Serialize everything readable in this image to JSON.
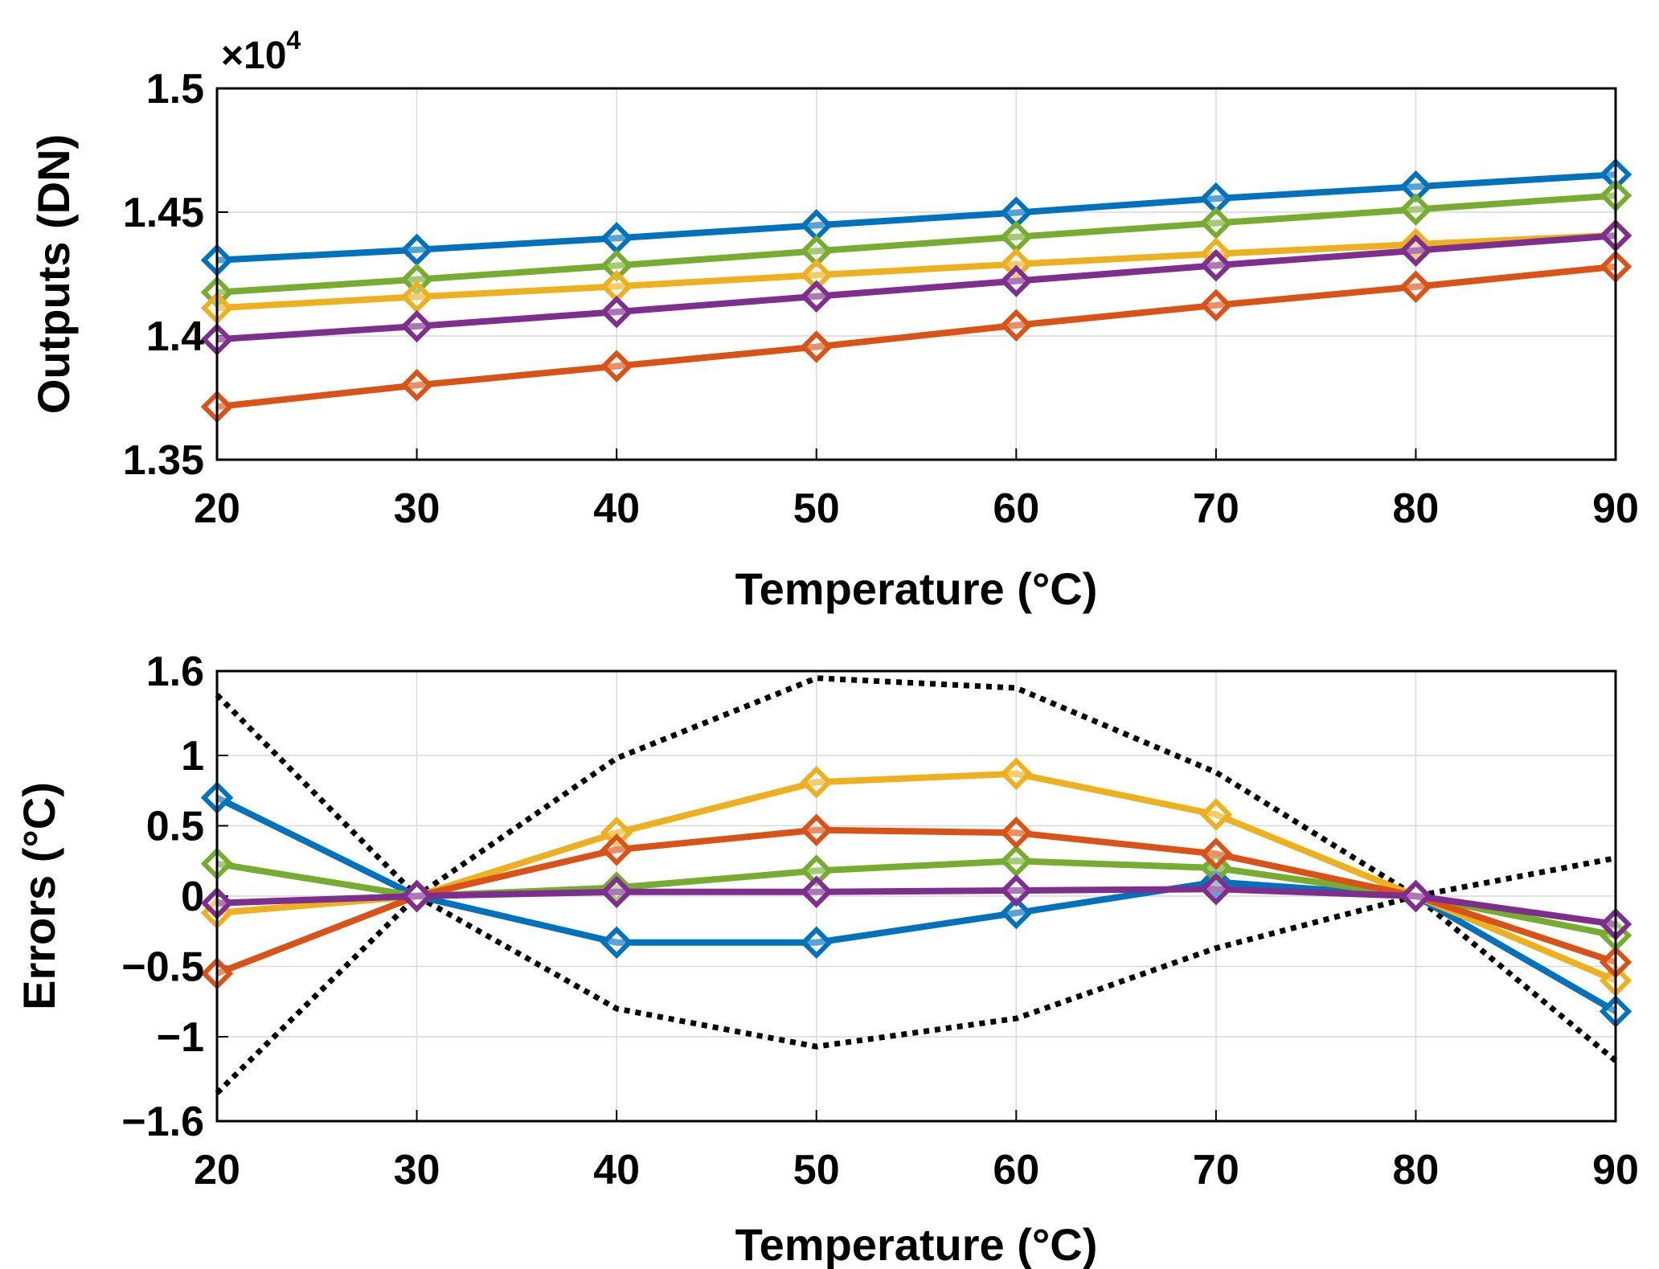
{
  "chart_data": [
    {
      "type": "line",
      "title": "",
      "xlabel": "Temperature (°C)",
      "ylabel": "Outputs (DN)",
      "exponent_label": "×10",
      "exponent_power": "4",
      "x": [
        20,
        30,
        40,
        50,
        60,
        70,
        80,
        90
      ],
      "xlim": [
        20,
        90
      ],
      "ylim": [
        1.35,
        1.5
      ],
      "xticks": [
        "20",
        "30",
        "40",
        "50",
        "60",
        "70",
        "80",
        "90"
      ],
      "yticks": [
        {
          "value": 1.35,
          "label": "1.35"
        },
        {
          "value": 1.4,
          "label": "1.4"
        },
        {
          "value": 1.45,
          "label": "1.45"
        },
        {
          "value": 1.5,
          "label": "1.5"
        }
      ],
      "grid": true,
      "marker": "diamond",
      "series": [
        {
          "name": "blue",
          "color": "#0072BD",
          "values": [
            1.4306,
            1.4348,
            1.4395,
            1.4447,
            1.4498,
            1.4555,
            1.4603,
            1.4652
          ]
        },
        {
          "name": "green",
          "color": "#77AC30",
          "values": [
            1.4176,
            1.4228,
            1.4284,
            1.4343,
            1.44,
            1.4456,
            1.4511,
            1.4567
          ]
        },
        {
          "name": "yellow",
          "color": "#EDB120",
          "values": [
            1.4113,
            1.4158,
            1.42,
            1.4246,
            1.429,
            1.4332,
            1.437,
            1.4407
          ]
        },
        {
          "name": "purple",
          "color": "#7E2F8E",
          "values": [
            1.3986,
            1.4039,
            1.4097,
            1.416,
            1.4222,
            1.4285,
            1.4345,
            1.4405
          ]
        },
        {
          "name": "red",
          "color": "#D95319",
          "values": [
            1.3714,
            1.3801,
            1.3878,
            1.3956,
            1.4043,
            1.4124,
            1.4199,
            1.428
          ]
        }
      ]
    },
    {
      "type": "line",
      "title": "",
      "xlabel": "Temperature (°C)",
      "ylabel": "Errors (°C)",
      "x": [
        20,
        30,
        40,
        50,
        60,
        70,
        80,
        90
      ],
      "xlim": [
        20,
        90
      ],
      "ylim": [
        -1.6,
        1.6
      ],
      "xticks": [
        "20",
        "30",
        "40",
        "50",
        "60",
        "70",
        "80",
        "90"
      ],
      "yticks": [
        {
          "value": -1.6,
          "label": "−1.6"
        },
        {
          "value": -1,
          "label": "−1"
        },
        {
          "value": -0.5,
          "label": "−0.5"
        },
        {
          "value": 0,
          "label": "0"
        },
        {
          "value": 0.5,
          "label": "0.5"
        },
        {
          "value": 1,
          "label": "1"
        },
        {
          "value": 1.6,
          "label": "1.6"
        }
      ],
      "grid": true,
      "marker": "diamond",
      "series": [
        {
          "name": "blue",
          "color": "#0072BD",
          "values": [
            0.7,
            0.0,
            -0.33,
            -0.33,
            -0.12,
            0.1,
            0.0,
            -0.82
          ]
        },
        {
          "name": "green",
          "color": "#77AC30",
          "values": [
            0.23,
            0.0,
            0.06,
            0.18,
            0.25,
            0.2,
            0.0,
            -0.28
          ]
        },
        {
          "name": "yellow",
          "color": "#EDB120",
          "values": [
            -0.12,
            0.0,
            0.45,
            0.81,
            0.87,
            0.58,
            0.0,
            -0.6
          ]
        },
        {
          "name": "red",
          "color": "#D95319",
          "values": [
            -0.55,
            0.0,
            0.33,
            0.47,
            0.45,
            0.3,
            0.0,
            -0.47
          ]
        },
        {
          "name": "purple",
          "color": "#7E2F8E",
          "values": [
            -0.05,
            0.0,
            0.03,
            0.03,
            0.04,
            0.05,
            0.0,
            -0.2
          ]
        }
      ],
      "bounds": [
        {
          "name": "upper-bound",
          "color": "#000000",
          "values": [
            1.43,
            0.0,
            0.98,
            1.55,
            1.48,
            0.88,
            0.0,
            0.27
          ]
        },
        {
          "name": "lower-bound",
          "color": "#000000",
          "values": [
            -1.4,
            0.0,
            -0.8,
            -1.07,
            -0.87,
            -0.37,
            0.0,
            -1.17
          ]
        }
      ]
    }
  ]
}
